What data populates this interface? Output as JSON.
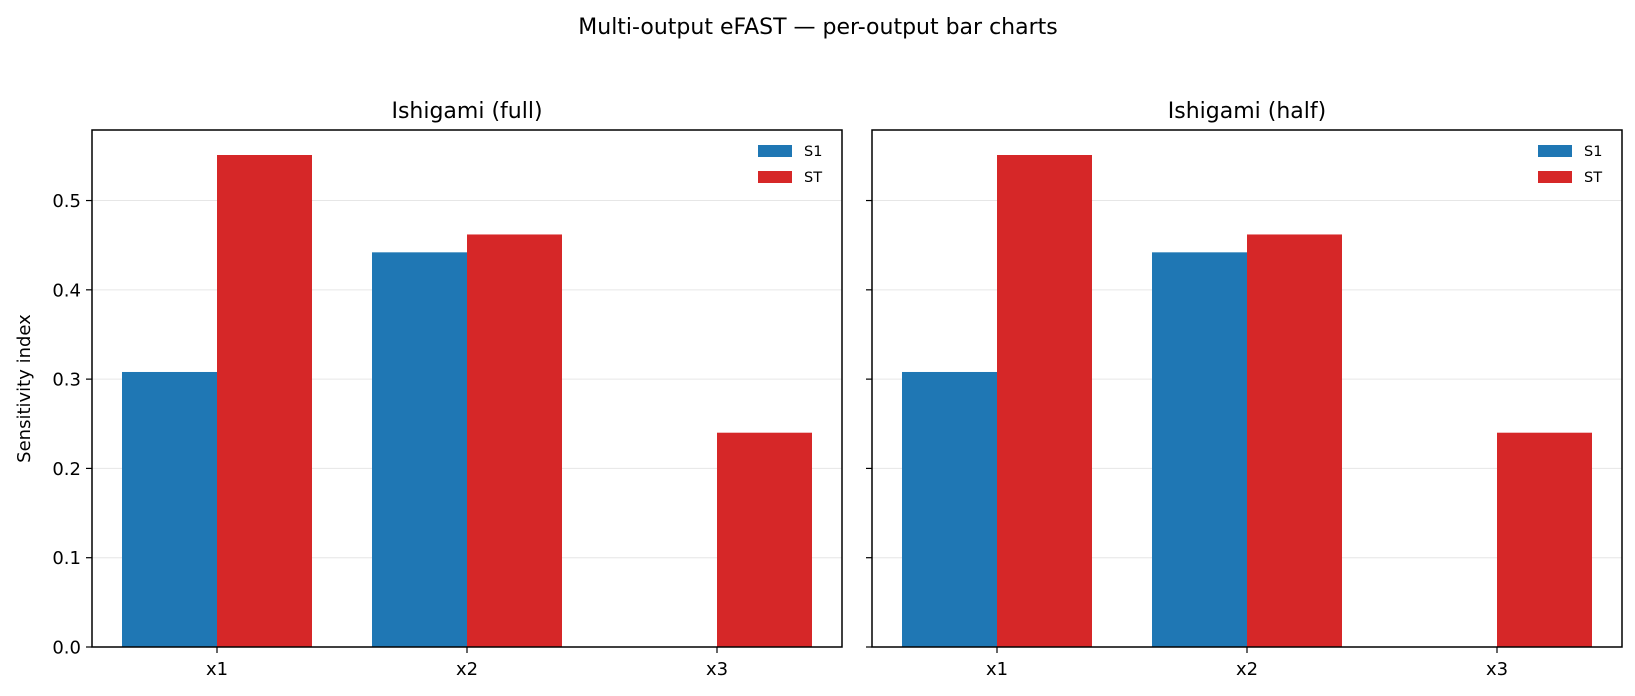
{
  "figure": {
    "title": "Multi-output eFAST — per-output bar charts"
  },
  "colors": {
    "S1": "#1f77b4",
    "ST": "#d62728",
    "grid": "#e6e6e6",
    "axis": "#000000"
  },
  "chart_data": [
    {
      "type": "bar",
      "title": "Ishigami (full)",
      "xlabel": "",
      "ylabel": "Sensitivity index",
      "categories": [
        "x1",
        "x2",
        "x3"
      ],
      "series": [
        {
          "name": "S1",
          "values": [
            0.308,
            0.442,
            0.0
          ]
        },
        {
          "name": "ST",
          "values": [
            0.551,
            0.462,
            0.24
          ]
        }
      ],
      "ylim": [
        0,
        0.579
      ],
      "yticks": [
        0.0,
        0.1,
        0.2,
        0.3,
        0.4,
        0.5
      ],
      "ytick_labels": [
        "0.0",
        "0.1",
        "0.2",
        "0.3",
        "0.4",
        "0.5"
      ],
      "grid": true,
      "legend": "top-right"
    },
    {
      "type": "bar",
      "title": "Ishigami (half)",
      "xlabel": "",
      "ylabel": "",
      "categories": [
        "x1",
        "x2",
        "x3"
      ],
      "series": [
        {
          "name": "S1",
          "values": [
            0.308,
            0.442,
            0.0
          ]
        },
        {
          "name": "ST",
          "values": [
            0.551,
            0.462,
            0.24
          ]
        }
      ],
      "ylim": [
        0,
        0.579
      ],
      "yticks": [
        0.0,
        0.1,
        0.2,
        0.3,
        0.4,
        0.5
      ],
      "ytick_labels": [],
      "grid": true,
      "legend": "top-right"
    }
  ]
}
